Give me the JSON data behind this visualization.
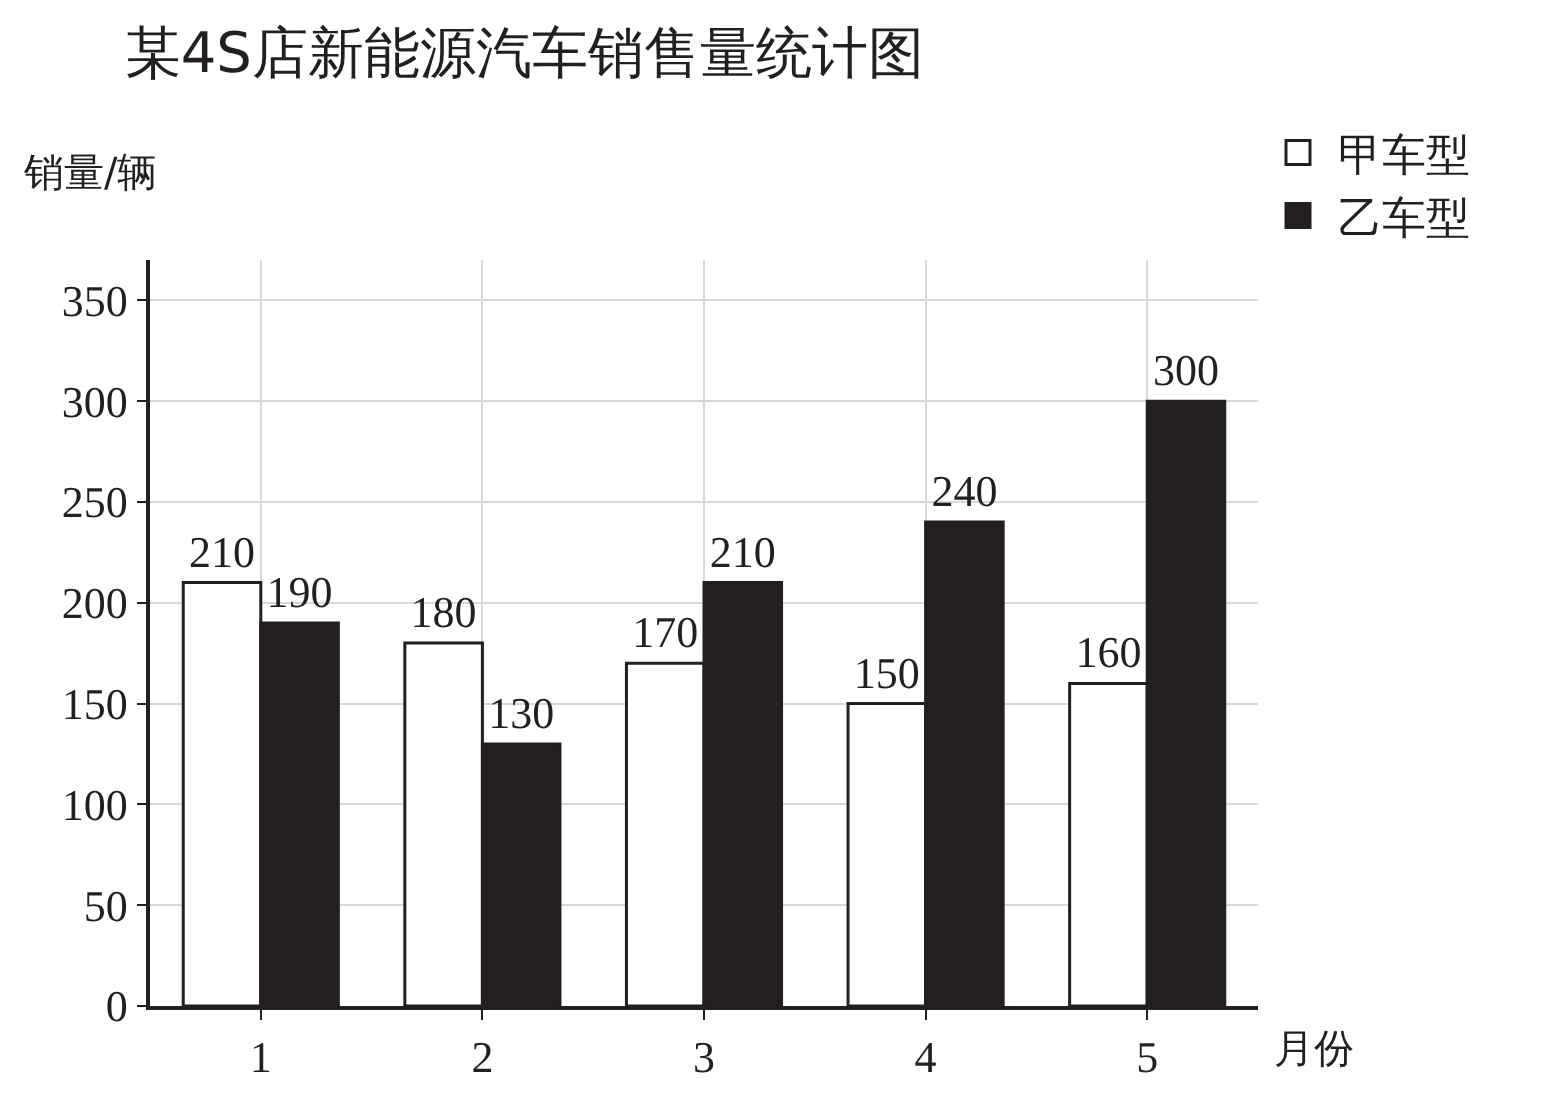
{
  "chart_data": {
    "type": "bar",
    "title": "某4S店新能源汽车销售量统计图",
    "xlabel": "月份",
    "ylabel": "销量/辆",
    "categories": [
      "1",
      "2",
      "3",
      "4",
      "5"
    ],
    "series": [
      {
        "name": "甲车型",
        "color": "#ffffff",
        "values": [
          210,
          180,
          170,
          150,
          160
        ]
      },
      {
        "name": "乙车型",
        "color": "#231f20",
        "values": [
          190,
          130,
          210,
          240,
          300
        ]
      }
    ],
    "ylim": [
      0,
      370
    ],
    "yticks": [
      0,
      50,
      100,
      150,
      200,
      250,
      300,
      350
    ],
    "grid": true,
    "legend": "top right",
    "data_labels": true
  }
}
